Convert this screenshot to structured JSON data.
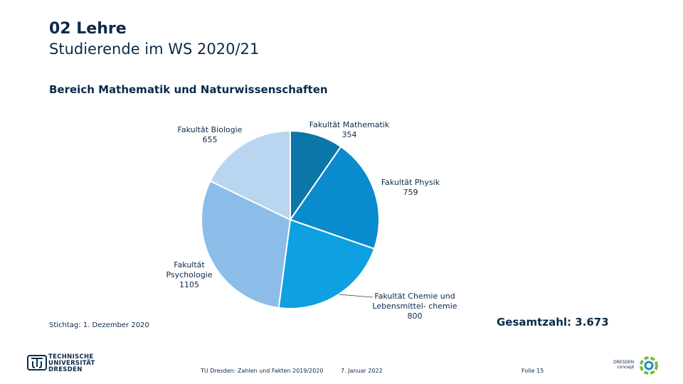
{
  "header": {
    "section": "02 Lehre",
    "title": "Studierende im WS 2020/21"
  },
  "subtitle": "Bereich Mathematik und Naturwissenschaften",
  "chart_data": {
    "type": "pie",
    "title": "Bereich Mathematik und Naturwissenschaften",
    "slices": [
      {
        "label": "Fakultät Mathematik",
        "value": 354,
        "display": "354",
        "color": "#0b76a8"
      },
      {
        "label": "Fakultät Physik",
        "value": 759,
        "display": "759",
        "color": "#0a8bcd"
      },
      {
        "label": "Fakultät Chemie und Lebensmittel- chemie",
        "value": 800,
        "display": "800",
        "color": "#0ea0e0"
      },
      {
        "label": "Fakultät Psychologie",
        "value": 1105,
        "display": "1105",
        "color": "#8bbde8"
      },
      {
        "label": "Fakultät Biologie",
        "value": 655,
        "display": "655",
        "color": "#b9d5ef"
      }
    ]
  },
  "stichtag": "Stichtag: 1. Dezember 2020",
  "total": "Gesamtzahl: 3.673",
  "footer": {
    "org_line1": "TECHNISCHE",
    "org_line2": "UNIVERSITÄT",
    "org_line3": "DRESDEN",
    "source": "TU Dresden: Zahlen und Fakten 2019/2020",
    "date": "7. Januar 2022",
    "slide": "Folie 15",
    "partner_line1": "DRESDEN",
    "partner_line2": "concept"
  },
  "colors": {
    "text": "#0b2a4a"
  }
}
